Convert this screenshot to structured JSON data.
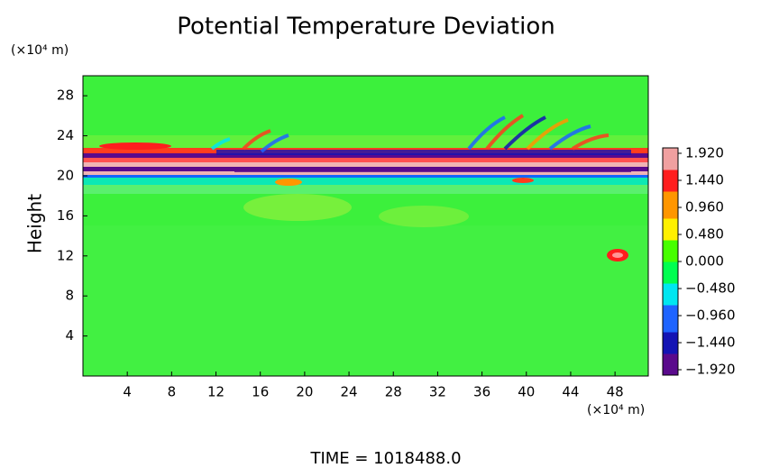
{
  "chart_data": {
    "type": "heatmap",
    "title": "Potential Temperature Deviation",
    "y_label": "Height",
    "y_unit": "(×10⁴ m)",
    "x_unit": "(×10⁴ m)",
    "footer": "TIME = 1018488.0",
    "xlim": [
      0,
      51
    ],
    "xticks": [
      4,
      8,
      12,
      16,
      20,
      24,
      28,
      32,
      36,
      40,
      44,
      48
    ],
    "ylim": [
      0,
      30
    ],
    "yticks": [
      4,
      8,
      12,
      16,
      20,
      24,
      28
    ],
    "clim": [
      -2.016,
      2.016
    ],
    "colormap": [
      "#5a0a8c",
      "#1414b4",
      "#1e64ff",
      "#00e6f0",
      "#00ff50",
      "#46ff00",
      "#fff000",
      "#ff9600",
      "#ff1e1e",
      "#f0a0a0"
    ],
    "cticks": [
      {
        "value": 1.92,
        "label": "1.920"
      },
      {
        "value": 1.44,
        "label": "1.440"
      },
      {
        "value": 0.96,
        "label": "0.960"
      },
      {
        "value": 0.48,
        "label": "0.480"
      },
      {
        "value": 0,
        "label": "0.000"
      },
      {
        "value": -0.48,
        "label": "−0.480"
      },
      {
        "value": -0.96,
        "label": "−0.960"
      },
      {
        "value": -1.44,
        "label": "−1.440"
      },
      {
        "value": -1.92,
        "label": "−1.920"
      }
    ]
  }
}
